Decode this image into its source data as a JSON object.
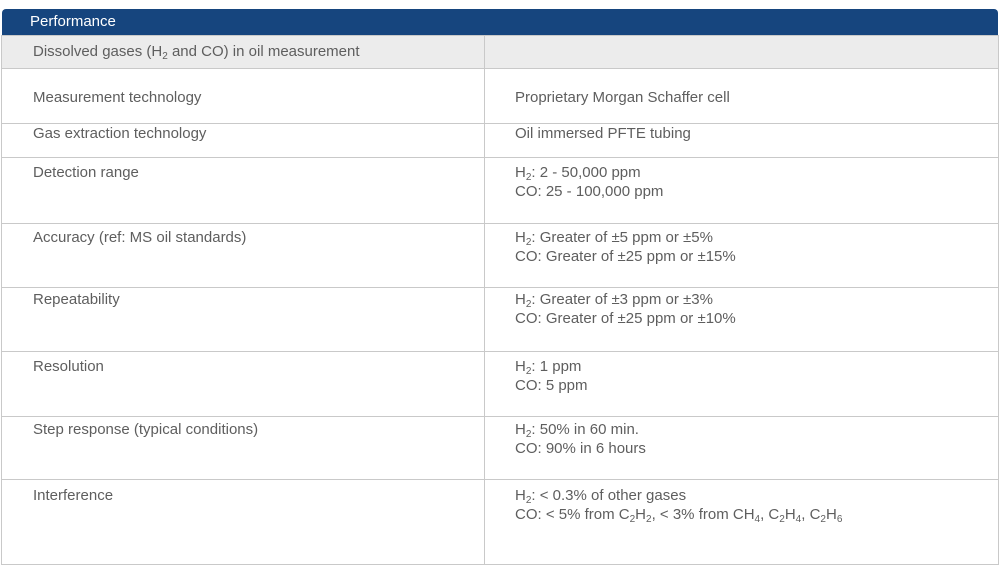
{
  "header": {
    "title": "Performance"
  },
  "subheader": {
    "pre": "Dissolved gases (H",
    "sub": "2",
    "post": " and CO) in oil measurement"
  },
  "rows": [
    {
      "label": "Measurement technology",
      "value": "Proprietary Morgan Schaffer cell"
    },
    {
      "label": "Gas extraction technology",
      "value": "Oil immersed PFTE tubing"
    },
    {
      "label": "Detection range",
      "h2_value": ": 2 - 50,000 ppm",
      "co_value": "CO: 25 - 100,000 ppm"
    },
    {
      "label": "Accuracy (ref: MS oil standards)",
      "h2_value": ": Greater of ±5 ppm or ±5%",
      "co_value": "CO: Greater of ±25 ppm or ±15%"
    },
    {
      "label": "Repeatability",
      "h2_value": ": Greater of ±3 ppm or ±3%",
      "co_value": "CO: Greater of ±25 ppm or ±10%"
    },
    {
      "label": "Resolution",
      "h2_value": ": 1 ppm",
      "co_value": "CO: 5 ppm"
    },
    {
      "label": "Step response (typical conditions)",
      "h2_value": ": 50% in 60 min.",
      "co_value": "CO: 90% in 6 hours"
    },
    {
      "label": "Interference",
      "h2_value": ": < 0.3% of other gases",
      "co_prefix": "CO: < 5% from C",
      "co_mid1": "H",
      "co_mid2": ", < 3% from CH",
      "co_mid3": ", C",
      "co_mid4": "H",
      "co_mid5": ", C",
      "co_mid6": "H"
    }
  ],
  "h2_symbol": "H",
  "h2_sub": "2"
}
